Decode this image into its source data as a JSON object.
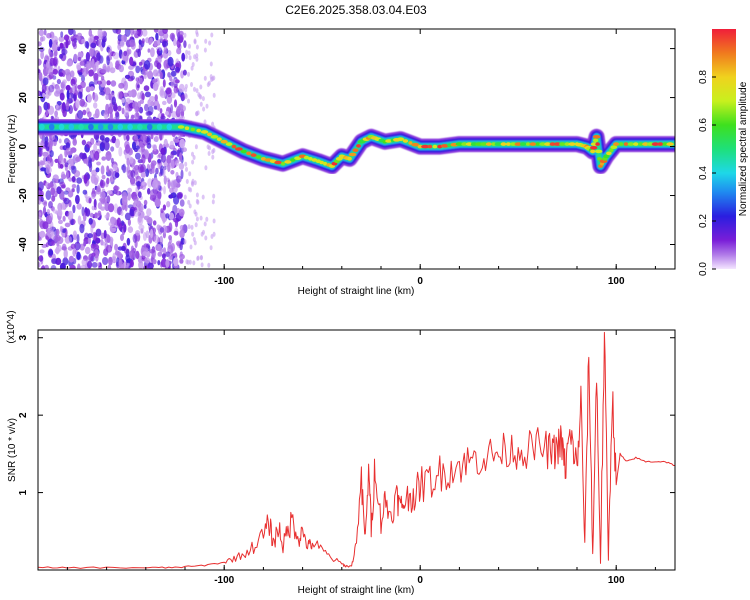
{
  "title": "C2E6.2025.358.03.04.E03",
  "colors": {
    "snr_line": "#e83030",
    "axis": "#000000",
    "scatter_purple": "#7a1ed8"
  },
  "chart_data": [
    {
      "type": "heatmap",
      "title": "C2E6.2025.358.03.04.E03",
      "xlabel": "Height of straight line (km)",
      "ylabel": "Frequency (Hz)",
      "xlim": [
        -195,
        130
      ],
      "ylim": [
        -50,
        48
      ],
      "x_ticks": [
        -100,
        0,
        100
      ],
      "x_tick_labels": [
        "-100",
        "0",
        "100"
      ],
      "y_ticks": [
        -40,
        -20,
        0,
        20,
        40
      ],
      "y_tick_labels": [
        "-40",
        "-20",
        "0",
        "20",
        "40"
      ],
      "colorbar": {
        "label": "Normalized spectral amplitude",
        "range": [
          0,
          1
        ],
        "ticks": [
          0.0,
          0.2,
          0.4,
          0.6,
          0.8
        ],
        "tick_labels": [
          "0.0",
          "0.2",
          "0.4",
          "0.6",
          "0.8"
        ]
      },
      "ridge": {
        "x": [
          -195,
          -170,
          -150,
          -130,
          -122,
          -110,
          -100,
          -90,
          -80,
          -70,
          -60,
          -52,
          -45,
          -40,
          -36,
          -30,
          -25,
          -18,
          -10,
          0,
          10,
          20,
          30,
          40,
          50,
          60,
          70,
          80,
          85,
          88,
          90,
          92,
          95,
          100,
          110,
          120,
          130
        ],
        "y": [
          8,
          8,
          8,
          8,
          8,
          6,
          2,
          -2,
          -5,
          -7,
          -4,
          -6,
          -8,
          -4,
          -5,
          2,
          4,
          2,
          3,
          0,
          0,
          1,
          1,
          1,
          1,
          1,
          1,
          1,
          0,
          -2,
          4,
          -8,
          -4,
          1,
          1,
          1,
          1
        ]
      },
      "noise_region_x": [
        -195,
        -120
      ]
    },
    {
      "type": "line",
      "title": "",
      "xlabel": "Height of straight line (km)",
      "ylabel": "SNR (10 * v/v)",
      "y_multiplier_label": "(x10^4)",
      "xlim": [
        -195,
        130
      ],
      "ylim": [
        0,
        3.1
      ],
      "x_ticks": [
        -100,
        0,
        100
      ],
      "x_tick_labels": [
        "-100",
        "0",
        "100"
      ],
      "y_ticks": [
        1,
        2,
        3
      ],
      "y_tick_labels": [
        "1",
        "2",
        "3"
      ],
      "series": [
        {
          "name": "SNR",
          "x": [
            -195,
            -180,
            -160,
            -140,
            -130,
            -120,
            -110,
            -100,
            -95,
            -90,
            -85,
            -80,
            -77,
            -75,
            -72,
            -70,
            -68,
            -65,
            -62,
            -60,
            -57,
            -55,
            -50,
            -45,
            -40,
            -38,
            -35,
            -33,
            -30,
            -28,
            -26,
            -25,
            -23,
            -20,
            -18,
            -15,
            -12,
            -10,
            -8,
            -5,
            -2,
            0,
            5,
            10,
            15,
            20,
            25,
            30,
            35,
            40,
            45,
            50,
            55,
            60,
            65,
            68,
            70,
            72,
            74,
            76,
            78,
            80,
            82,
            84,
            86,
            88,
            90,
            92,
            94,
            96,
            98,
            100,
            102,
            105,
            110,
            115,
            120,
            125,
            130
          ],
          "y": [
            0.03,
            0.03,
            0.03,
            0.03,
            0.03,
            0.04,
            0.06,
            0.1,
            0.15,
            0.2,
            0.3,
            0.45,
            0.6,
            0.35,
            0.55,
            0.3,
            0.5,
            0.65,
            0.4,
            0.5,
            0.3,
            0.35,
            0.25,
            0.15,
            0.08,
            0.05,
            0.05,
            0.3,
            1.1,
            0.4,
            1.35,
            0.5,
            1.4,
            0.6,
            0.9,
            0.7,
            0.95,
            0.8,
            0.9,
            0.95,
            1.0,
            1.1,
            1.15,
            1.25,
            1.3,
            1.35,
            1.4,
            1.45,
            1.48,
            1.5,
            1.55,
            1.55,
            1.55,
            1.6,
            1.55,
            1.5,
            1.6,
            1.65,
            1.3,
            1.7,
            1.6,
            1.3,
            2.2,
            0.3,
            2.8,
            0.2,
            2.5,
            0.1,
            3.0,
            0.15,
            2.3,
            1.1,
            1.5,
            1.4,
            1.45,
            1.4,
            1.4,
            1.4,
            1.35
          ],
          "color": "#e83030"
        }
      ]
    }
  ]
}
